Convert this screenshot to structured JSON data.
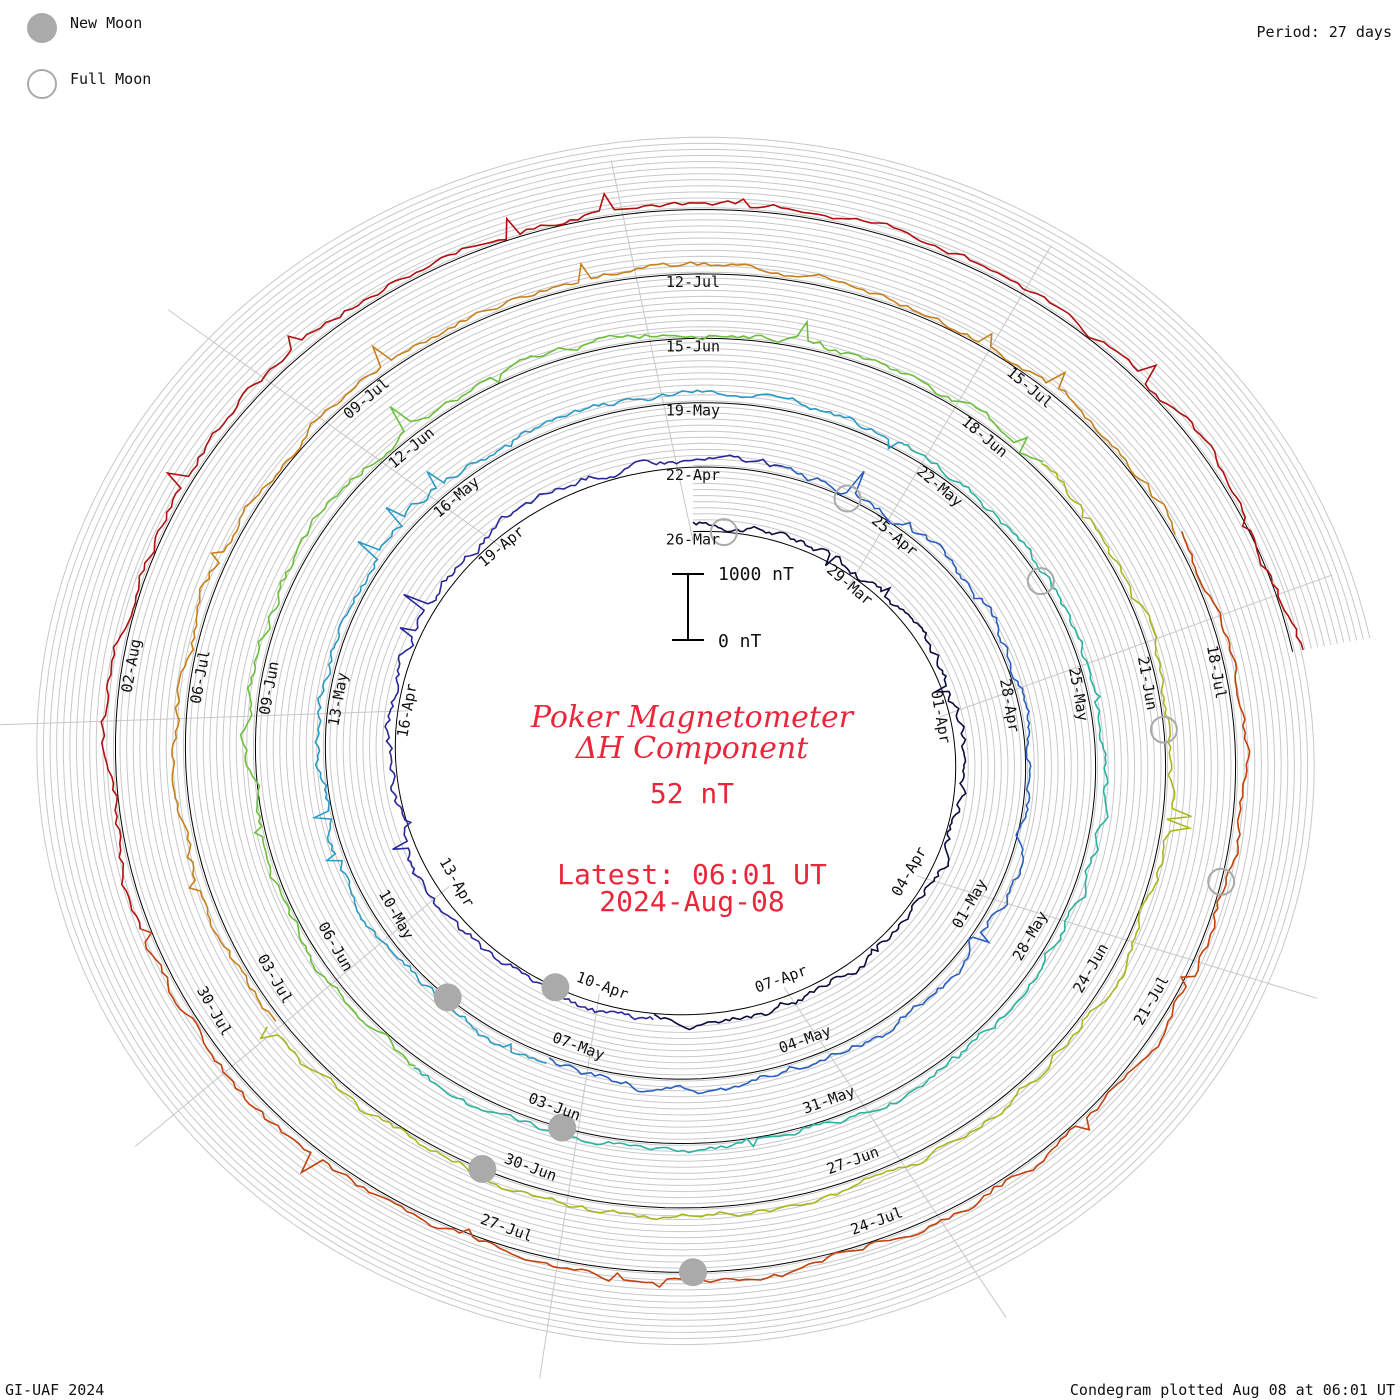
{
  "legend": {
    "new_moon_label": "New Moon",
    "full_moon_label": "Full Moon"
  },
  "period_label": "Period: 27 days",
  "footer": {
    "left": "GI-UAF 2024",
    "right": "Condegram plotted Aug 08 at 06:01 UT"
  },
  "center": {
    "title_line1": "Poker Magnetometer",
    "title_line2": "ΔH Component",
    "current_value": "52 nT",
    "latest_line1": "Latest: 06:01 UT",
    "latest_line2": "2024-Aug-08"
  },
  "scale_bar": {
    "top_label": "1000 nT",
    "bottom_label": "0 nT"
  },
  "colors": {
    "text_red": "#e8283a",
    "moon_fill": "#aaaaaa",
    "grid": "#c8c8c8",
    "baseline": "#000000",
    "rotation_colors": [
      "#0b0b3d",
      "#28289a",
      "#2a5fbf",
      "#2b9bc4",
      "#2ab3a0",
      "#6cbf3c",
      "#a7b81f",
      "#c7801c",
      "#c2410c",
      "#b01010"
    ]
  },
  "chart_data": {
    "type": "condegram",
    "period_days": 27,
    "scale_nT": [
      0,
      1000
    ],
    "current_value_nT": 52,
    "rotations": [
      {
        "index": 0,
        "tick_labels": [
          "26-Mar",
          "29-Mar",
          "01-Apr",
          "04-Apr",
          "07-Apr",
          "10-Apr",
          "13-Apr",
          "16-Apr",
          "19-Apr"
        ]
      },
      {
        "index": 1,
        "tick_labels": [
          "22-Apr",
          "25-Apr",
          "28-Apr",
          "01-May",
          "04-May",
          "07-May",
          "10-May",
          "13-May",
          "16-May"
        ]
      },
      {
        "index": 2,
        "tick_labels": [
          "19-May",
          "22-May",
          "25-May",
          "28-May",
          "31-May",
          "03-Jun",
          "06-Jun",
          "09-Jun",
          "12-Jun"
        ]
      },
      {
        "index": 3,
        "tick_labels": [
          "15-Jun",
          "18-Jun",
          "21-Jun",
          "24-Jun",
          "27-Jun",
          "30-Jun",
          "03-Jul",
          "06-Jul",
          "09-Jul"
        ]
      },
      {
        "index": 4,
        "tick_labels": [
          "12-Jul",
          "15-Jul",
          "18-Jul",
          "21-Jul",
          "24-Jul",
          "27-Jul",
          "30-Jul",
          "02-Aug"
        ]
      }
    ],
    "new_moons": [
      "Apr-08",
      "May-08",
      "Jun-06",
      "Jul-05",
      "Aug-04"
    ],
    "full_moons": [
      "Mar-25",
      "Apr-23",
      "May-23",
      "Jun-22",
      "Jul-21"
    ]
  }
}
